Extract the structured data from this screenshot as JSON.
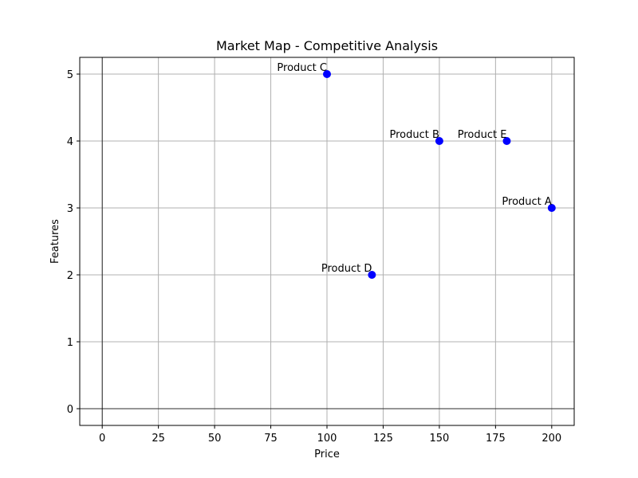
{
  "chart_data": {
    "type": "scatter",
    "title": "Market Map - Competitive Analysis",
    "xlabel": "Price",
    "ylabel": "Features",
    "xlim": [
      -10,
      210
    ],
    "ylim": [
      -0.25,
      5.25
    ],
    "xticks": [
      0,
      25,
      50,
      75,
      100,
      125,
      150,
      175,
      200
    ],
    "yticks": [
      0,
      1,
      2,
      3,
      4,
      5
    ],
    "grid": true,
    "reference_lines": {
      "x": 0,
      "y": 0
    },
    "marker_color": "#0000ff",
    "points": [
      {
        "label": "Product A",
        "x": 200,
        "y": 3
      },
      {
        "label": "Product B",
        "x": 150,
        "y": 4
      },
      {
        "label": "Product C",
        "x": 100,
        "y": 5
      },
      {
        "label": "Product D",
        "x": 120,
        "y": 2
      },
      {
        "label": "Product E",
        "x": 180,
        "y": 4
      }
    ]
  }
}
